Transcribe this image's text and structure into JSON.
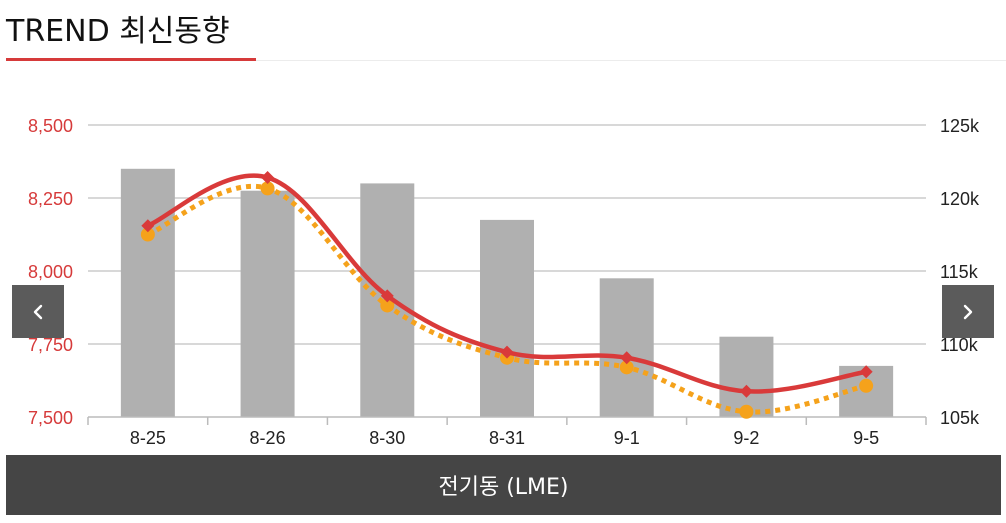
{
  "header": {
    "title": "TREND 최신동향"
  },
  "footer": {
    "label": "전기동 (LME)"
  },
  "nav": {
    "prev_icon": "chevron-left-icon",
    "next_icon": "chevron-right-icon"
  },
  "colors": {
    "accent": "#d63a3a",
    "bar": "#b0b0b0",
    "line_primary": "#d93a3a",
    "line_secondary": "#f5a21b",
    "grid": "#cccccc",
    "footer_bg": "#454545"
  },
  "chart_data": {
    "type": "bar",
    "categories": [
      "8-25",
      "8-26",
      "8-30",
      "8-31",
      "9-1",
      "9-2",
      "9-5"
    ],
    "bars": {
      "axis": "right",
      "values": [
        122000,
        120500,
        121000,
        118500,
        114500,
        110500,
        108500
      ]
    },
    "series": [
      {
        "type": "line",
        "axis": "left",
        "style": "solid",
        "marker": "diamond",
        "values": [
          8155,
          8320,
          7915,
          7722,
          7703,
          7588,
          7655
        ]
      },
      {
        "type": "line",
        "axis": "left",
        "style": "dotted",
        "marker": "circle",
        "values": [
          8125,
          8283,
          7882,
          7703,
          7670,
          7518,
          7607
        ]
      }
    ],
    "y_left": {
      "min": 7500,
      "max": 8500,
      "ticks": [
        "7,500",
        "7,750",
        "8,000",
        "8,250",
        "8,500"
      ]
    },
    "y_right": {
      "min": 105000,
      "max": 125000,
      "ticks": [
        "105k",
        "110k",
        "115k",
        "120k",
        "125k"
      ]
    },
    "grid": true
  }
}
